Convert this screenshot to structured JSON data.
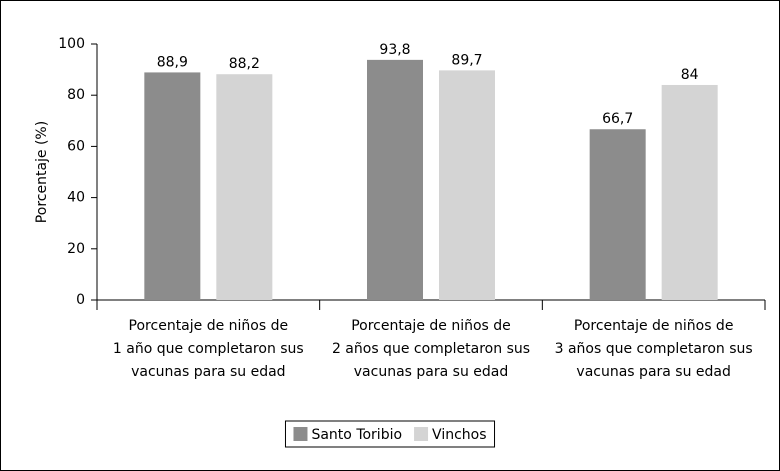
{
  "chart_data": {
    "type": "bar",
    "y_label": "Porcentaje (%)",
    "categories": [
      [
        "Porcentaje de niños de",
        "1 año que completaron sus",
        "vacunas para su edad"
      ],
      [
        "Porcentaje de niños de",
        "2 años que completaron sus",
        "vacunas para su edad"
      ],
      [
        "Porcentaje de niños de",
        "3 años que completaron sus",
        "vacunas para su edad"
      ]
    ],
    "series": [
      {
        "name": "Santo Toribio",
        "color": "#8c8c8c",
        "values": [
          88.9,
          93.8,
          66.7
        ],
        "value_labels": [
          "88,9",
          "93,8",
          "66,7"
        ]
      },
      {
        "name": "Vinchos",
        "color": "#d4d4d4",
        "values": [
          88.2,
          89.7,
          84
        ],
        "value_labels": [
          "88,2",
          "89,7",
          "84"
        ]
      }
    ],
    "ylim": [
      0,
      100
    ],
    "yticks": [
      0,
      20,
      40,
      60,
      80,
      100
    ],
    "legend": "bottom"
  }
}
